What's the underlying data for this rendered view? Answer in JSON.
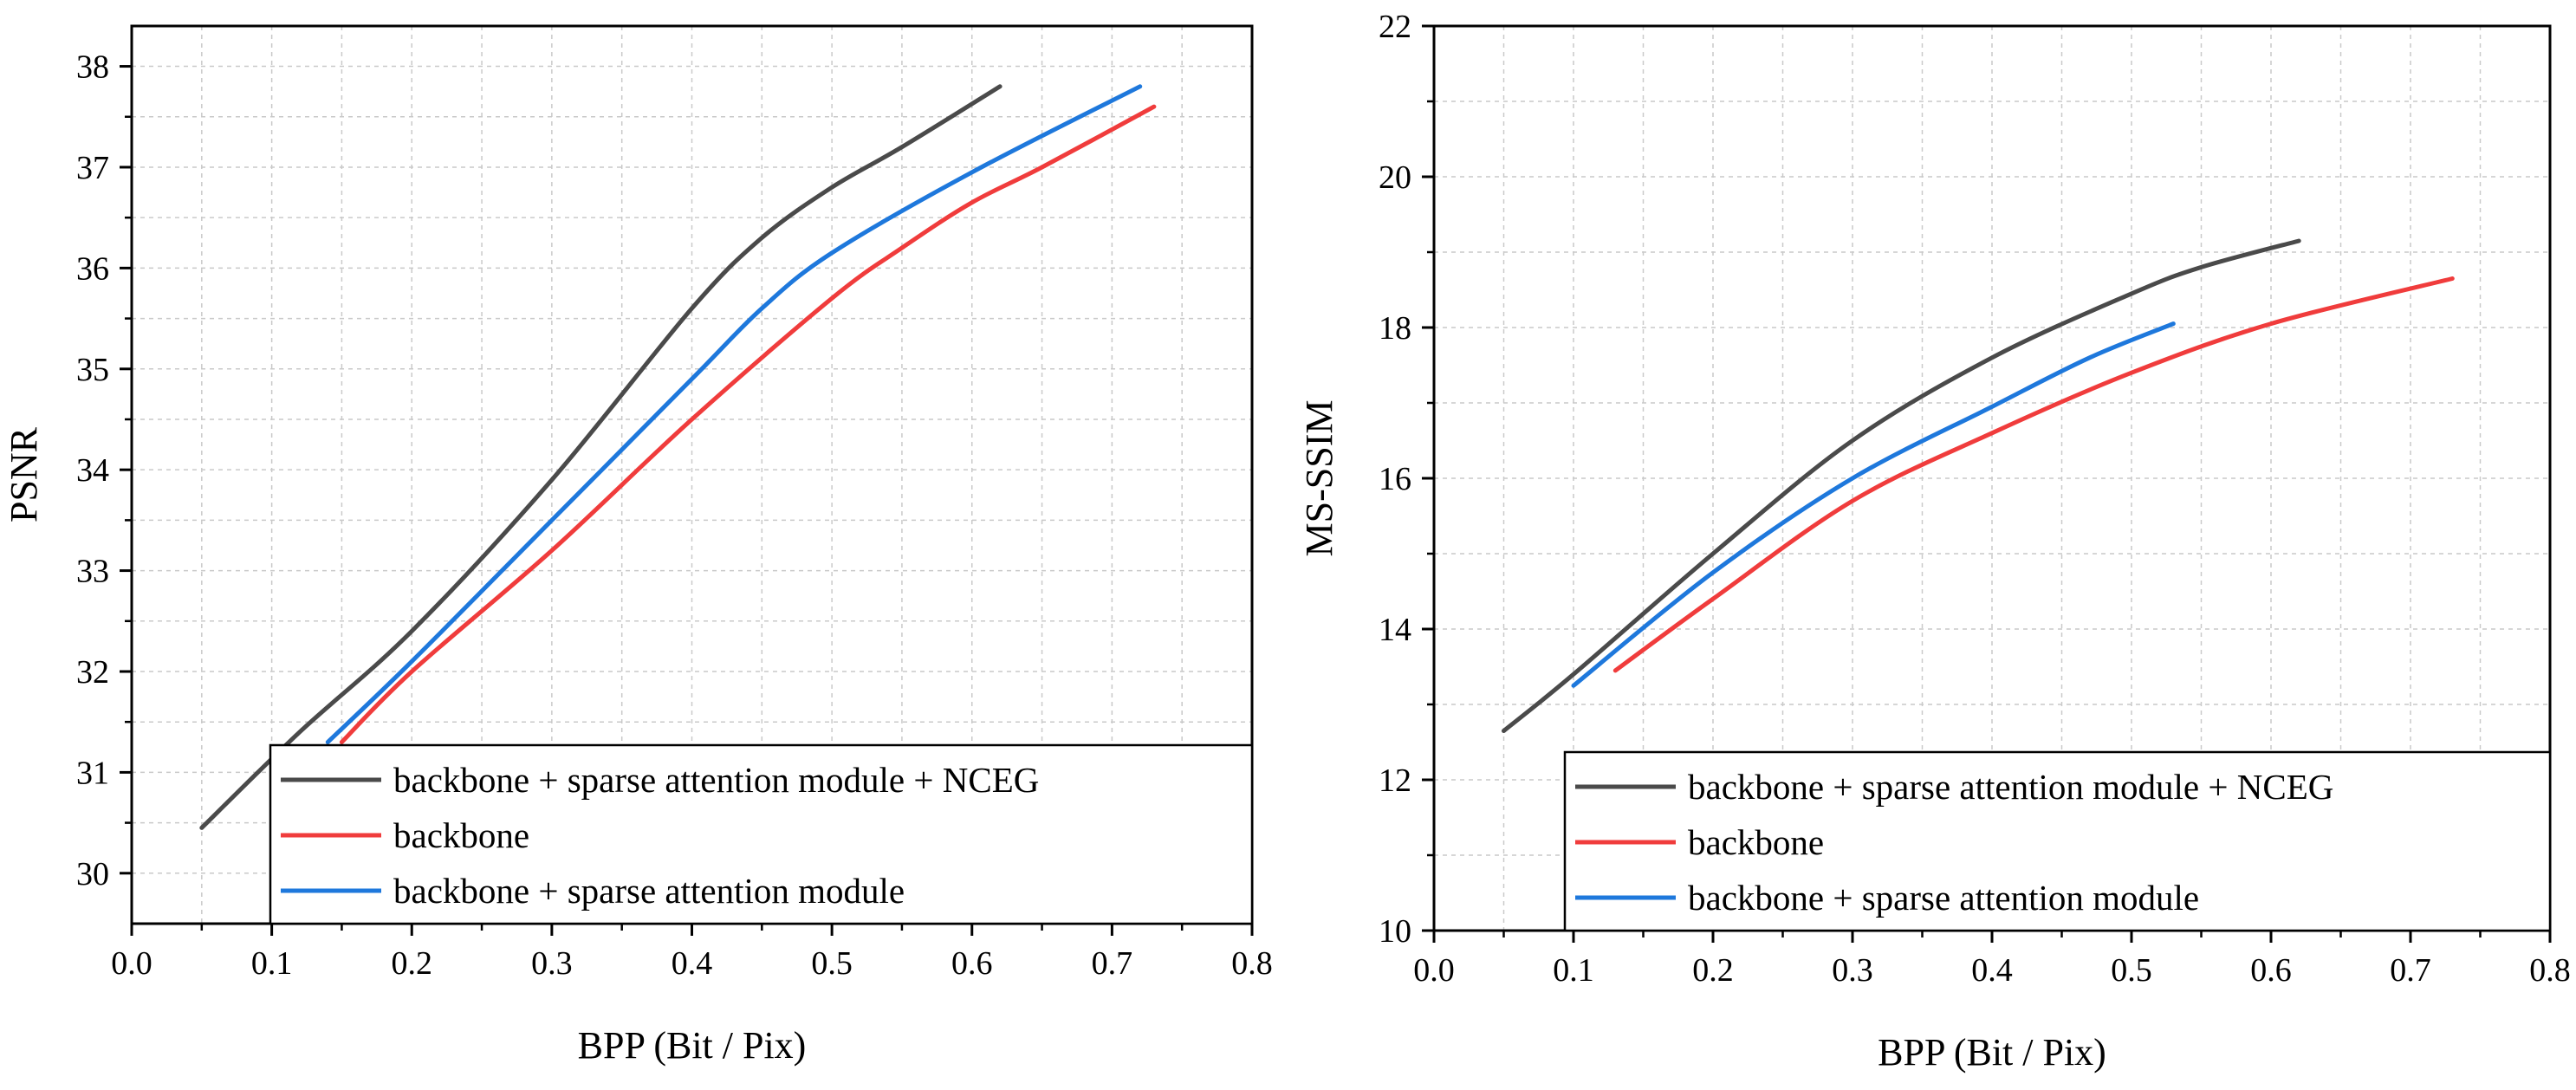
{
  "chart_data": [
    {
      "type": "line",
      "xlabel": "BPP (Bit / Pix)",
      "ylabel": "PSNR",
      "xlim": [
        0.0,
        0.8
      ],
      "ylim": [
        29.5,
        38.4
      ],
      "xticks": [
        0.0,
        0.1,
        0.2,
        0.3,
        0.4,
        0.5,
        0.6,
        0.7,
        0.8
      ],
      "xtick_labels": [
        "0.0",
        "0.1",
        "0.2",
        "0.3",
        "0.4",
        "0.5",
        "0.6",
        "0.7",
        "0.8"
      ],
      "yticks": [
        30,
        31,
        32,
        33,
        34,
        35,
        36,
        37,
        38
      ],
      "ytick_labels": [
        "30",
        "31",
        "32",
        "33",
        "34",
        "35",
        "36",
        "37",
        "38"
      ],
      "grid": true,
      "legend_position": "bottom-right",
      "series": [
        {
          "name": "backbone + sparse attention module + NCEG",
          "color": "#4a4a4a",
          "x": [
            0.05,
            0.12,
            0.2,
            0.3,
            0.4,
            0.45,
            0.5,
            0.55,
            0.62
          ],
          "y": [
            30.45,
            31.4,
            32.4,
            33.9,
            35.6,
            36.3,
            36.8,
            37.2,
            37.8
          ]
        },
        {
          "name": "backbone",
          "color": "#f03c3c",
          "x": [
            0.15,
            0.2,
            0.3,
            0.4,
            0.5,
            0.55,
            0.6,
            0.65,
            0.73
          ],
          "y": [
            31.3,
            32.0,
            33.2,
            34.5,
            35.7,
            36.2,
            36.65,
            37.0,
            37.6
          ]
        },
        {
          "name": "backbone + sparse attention module",
          "color": "#1e78dc",
          "x": [
            0.14,
            0.2,
            0.3,
            0.4,
            0.45,
            0.5,
            0.6,
            0.72
          ],
          "y": [
            31.3,
            32.1,
            33.5,
            34.9,
            35.6,
            36.15,
            36.95,
            37.8
          ]
        }
      ]
    },
    {
      "type": "line",
      "xlabel": "BPP (Bit / Pix)",
      "ylabel": "MS-SSIM",
      "xlim": [
        0.0,
        0.8
      ],
      "ylim": [
        10,
        22
      ],
      "xticks": [
        0.0,
        0.1,
        0.2,
        0.3,
        0.4,
        0.5,
        0.6,
        0.7,
        0.8
      ],
      "xtick_labels": [
        "0.0",
        "0.1",
        "0.2",
        "0.3",
        "0.4",
        "0.5",
        "0.6",
        "0.7",
        "0.8"
      ],
      "yticks": [
        10,
        12,
        14,
        16,
        18,
        20,
        22
      ],
      "ytick_labels": [
        "10",
        "12",
        "14",
        "16",
        "18",
        "20",
        "22"
      ],
      "grid": true,
      "legend_position": "bottom-right",
      "series": [
        {
          "name": "backbone + sparse attention module + NCEG",
          "color": "#4a4a4a",
          "x": [
            0.05,
            0.1,
            0.2,
            0.3,
            0.4,
            0.5,
            0.55,
            0.62
          ],
          "y": [
            12.65,
            13.4,
            15.0,
            16.5,
            17.6,
            18.45,
            18.8,
            19.15
          ]
        },
        {
          "name": "backbone",
          "color": "#f03c3c",
          "x": [
            0.13,
            0.2,
            0.3,
            0.4,
            0.5,
            0.6,
            0.73
          ],
          "y": [
            13.45,
            14.4,
            15.7,
            16.6,
            17.4,
            18.05,
            18.65
          ]
        },
        {
          "name": "backbone + sparse attention module",
          "color": "#1e78dc",
          "x": [
            0.1,
            0.2,
            0.3,
            0.4,
            0.47,
            0.53
          ],
          "y": [
            13.25,
            14.75,
            16.0,
            16.95,
            17.6,
            18.05
          ]
        }
      ]
    }
  ]
}
